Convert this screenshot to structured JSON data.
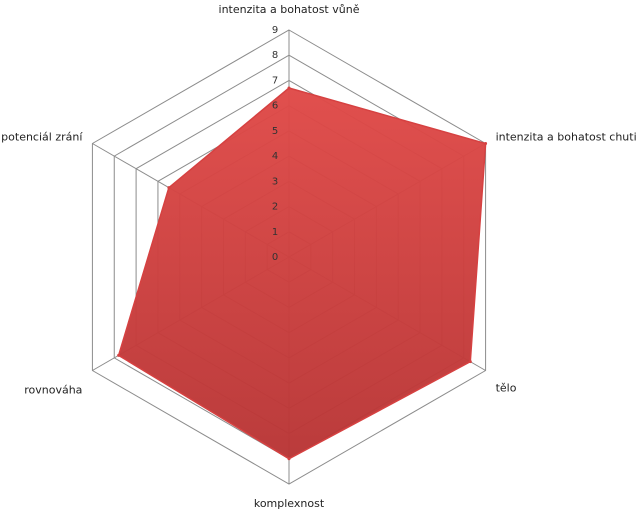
{
  "chart_data": {
    "type": "radar",
    "categories": [
      "intenzita a bohatost vůně",
      "intenzita a bohatost chuti",
      "tělo",
      "komplexnost",
      "rovnováha",
      "potenciál zrání"
    ],
    "values": [
      6.7,
      9,
      8.3,
      8,
      7.8,
      5.5
    ],
    "color": "#d64141",
    "rlim": [
      0,
      9
    ],
    "rticks": [
      0,
      1,
      2,
      3,
      4,
      5,
      6,
      7,
      8,
      9
    ],
    "grid": true
  }
}
